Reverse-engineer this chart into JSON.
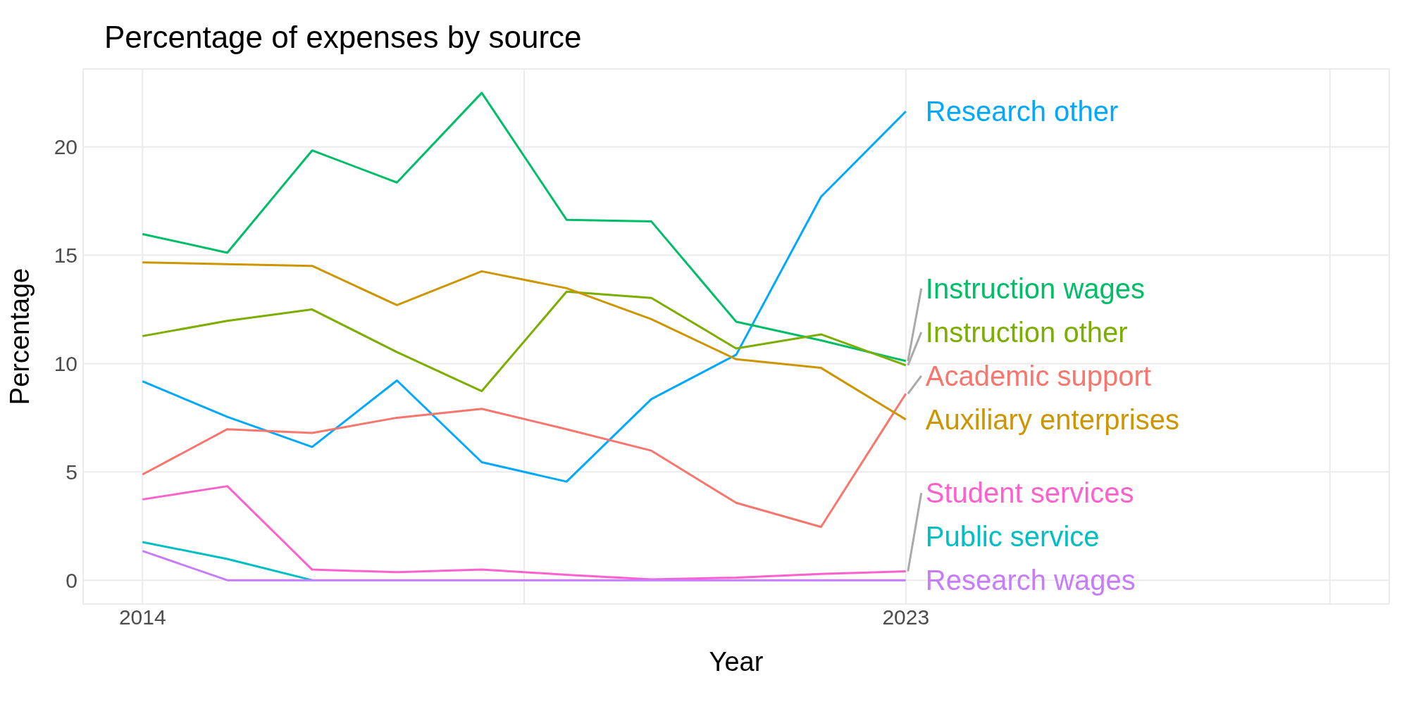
{
  "chart_data": {
    "type": "line",
    "title": "Percentage of expenses by source",
    "xlabel": "Year",
    "ylabel": "Percentage",
    "x": [
      2014,
      2015,
      2016,
      2017,
      2018,
      2019,
      2020,
      2021,
      2022,
      2023
    ],
    "series": [
      {
        "name": "Research other",
        "color": "#00a9ff",
        "values": [
          9.18,
          7.54,
          6.15,
          9.22,
          5.45,
          4.55,
          8.36,
          10.41,
          17.7,
          21.64
        ]
      },
      {
        "name": "Instruction wages",
        "color": "#00be67",
        "values": [
          15.98,
          15.12,
          19.84,
          18.36,
          22.5,
          16.64,
          16.56,
          11.93,
          11.07,
          10.12
        ]
      },
      {
        "name": "Instruction other",
        "color": "#7cae00",
        "values": [
          11.27,
          11.97,
          12.5,
          10.53,
          8.73,
          13.32,
          13.03,
          10.7,
          11.35,
          9.92
        ]
      },
      {
        "name": "Academic support",
        "color": "#f8766d",
        "values": [
          4.88,
          6.97,
          6.8,
          7.5,
          7.91,
          6.97,
          5.98,
          3.57,
          2.46,
          8.61
        ]
      },
      {
        "name": "Auxiliary enterprises",
        "color": "#cd9600",
        "values": [
          14.67,
          14.59,
          14.51,
          12.7,
          14.26,
          13.48,
          12.05,
          10.2,
          9.8,
          7.42
        ]
      },
      {
        "name": "Student services",
        "color": "#ff61cc",
        "values": [
          3.73,
          4.34,
          0.49,
          0.37,
          0.49,
          0.25,
          0.04,
          0.12,
          0.29,
          0.41
        ]
      },
      {
        "name": "Public service",
        "color": "#00bfc4",
        "values": [
          1.76,
          0.98,
          0,
          null,
          null,
          null,
          null,
          null,
          null,
          null
        ]
      },
      {
        "name": "Research wages",
        "color": "#c77cff",
        "values": [
          1.35,
          0,
          0,
          0,
          0,
          0,
          0,
          0,
          0,
          0
        ]
      }
    ],
    "xlim": [
      2013.3,
      2028.7
    ],
    "xticks": [
      2014,
      {
        "value": 2018.5,
        "label": null
      },
      2023,
      {
        "value": 2028,
        "label": null
      }
    ],
    "ylim": [
      -1.1,
      23.6
    ],
    "yticks": [
      0,
      5,
      10,
      15,
      20
    ],
    "grid": true,
    "legend": false,
    "marker": "none",
    "line_style": "solid"
  }
}
